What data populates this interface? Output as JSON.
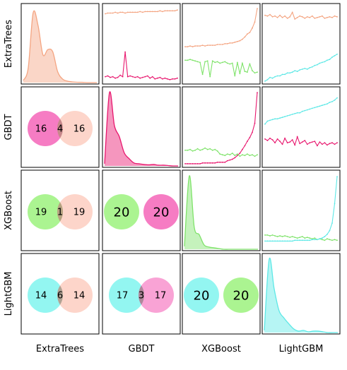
{
  "chart_data": {
    "type": "pairgrid",
    "models": [
      "ExtraTrees",
      "GBDT",
      "XGBoost",
      "LightGBM"
    ],
    "colors": {
      "ExtraTrees": "#f4a582",
      "GBDT": "#e8176e",
      "XGBoost": "#7fe36a",
      "LightGBM": "#5de8e6"
    },
    "venn_colors": {
      "ExtraTrees": "#fbb9a6",
      "GBDT": "#f565b9",
      "XGBoost": "#9cf27e",
      "LightGBM": "#80f4ee"
    },
    "density": {
      "ExtraTrees": [
        0.03,
        0.2,
        0.95,
        0.78,
        0.38,
        0.45,
        0.42,
        0.15,
        0.05,
        0.02,
        0.01,
        0.005,
        0.004,
        0.0,
        0.0,
        0.0
      ],
      "GBDT": [
        0.03,
        1.0,
        0.55,
        0.4,
        0.18,
        0.1,
        0.04,
        0.03,
        0.02,
        0.015,
        0.02,
        0.01,
        0.01,
        0.005,
        0.0,
        0.0
      ],
      "XGBoost": [
        0.04,
        1.0,
        0.3,
        0.2,
        0.06,
        0.03,
        0.02,
        0.01,
        0.0,
        0.0,
        0.0,
        0.0,
        0.0,
        0.0,
        0.0,
        0.0
      ],
      "LightGBM": [
        0.03,
        1.0,
        0.6,
        0.3,
        0.2,
        0.12,
        0.05,
        0.02,
        0.03,
        0.01,
        0.02,
        0.02,
        0.01,
        0.0,
        0.0,
        0.0
      ]
    },
    "pair_lines": [
      {
        "row": "ExtraTrees",
        "col": "GBDT",
        "series": [
          {
            "model": "ExtraTrees",
            "values": [
              0.91,
              0.92,
              0.92,
              0.92,
              0.93,
              0.92,
              0.93,
              0.93,
              0.92,
              0.93,
              0.93,
              0.93,
              0.93,
              0.93,
              0.94,
              0.93,
              0.94,
              0.94,
              0.94,
              0.94,
              0.94,
              0.94,
              0.95,
              0.94,
              0.95,
              0.95,
              0.95,
              0.95,
              0.95,
              0.96
            ]
          },
          {
            "model": "GBDT",
            "values": [
              0.07,
              0.08,
              0.06,
              0.07,
              0.05,
              0.06,
              0.09,
              0.07,
              0.4,
              0.07,
              0.08,
              0.07,
              0.06,
              0.07,
              0.05,
              0.06,
              0.07,
              0.08,
              0.05,
              0.07,
              0.04,
              0.05,
              0.06,
              0.04,
              0.05,
              0.04,
              0.03,
              0.04,
              0.04,
              0.05
            ]
          }
        ]
      },
      {
        "row": "ExtraTrees",
        "col": "XGBoost",
        "series": [
          {
            "model": "ExtraTrees",
            "values": [
              0.47,
              0.47,
              0.48,
              0.47,
              0.48,
              0.48,
              0.48,
              0.49,
              0.48,
              0.49,
              0.49,
              0.49,
              0.49,
              0.5,
              0.5,
              0.5,
              0.51,
              0.51,
              0.52,
              0.52,
              0.53,
              0.54,
              0.55,
              0.57,
              0.6,
              0.64,
              0.66,
              0.72,
              0.8,
              0.98
            ]
          },
          {
            "model": "XGBoost",
            "values": [
              0.29,
              0.29,
              0.3,
              0.29,
              0.28,
              0.27,
              0.26,
              0.1,
              0.27,
              0.28,
              0.07,
              0.28,
              0.26,
              0.27,
              0.25,
              0.26,
              0.27,
              0.25,
              0.24,
              0.25,
              0.08,
              0.26,
              0.11,
              0.25,
              0.14,
              0.13,
              0.24,
              0.15,
              0.12,
              0.13
            ]
          }
        ]
      },
      {
        "row": "ExtraTrees",
        "col": "LightGBM",
        "series": [
          {
            "model": "ExtraTrees",
            "values": [
              0.89,
              0.88,
              0.9,
              0.87,
              0.88,
              0.86,
              0.89,
              0.86,
              0.88,
              0.85,
              0.87,
              0.93,
              0.84,
              0.86,
              0.88,
              0.87,
              0.85,
              0.87,
              0.86,
              0.88,
              0.85,
              0.86,
              0.87,
              0.88,
              0.85,
              0.86,
              0.87,
              0.86,
              0.88,
              0.87
            ]
          },
          {
            "model": "LightGBM",
            "values": [
              0.01,
              0.03,
              0.06,
              0.05,
              0.07,
              0.08,
              0.08,
              0.1,
              0.1,
              0.12,
              0.12,
              0.13,
              0.15,
              0.14,
              0.16,
              0.17,
              0.18,
              0.17,
              0.19,
              0.2,
              0.22,
              0.23,
              0.25,
              0.26,
              0.27,
              0.29,
              0.3,
              0.33,
              0.35,
              0.37
            ]
          }
        ]
      },
      {
        "row": "GBDT",
        "col": "XGBoost",
        "series": [
          {
            "model": "GBDT",
            "values": [
              0.02,
              0.02,
              0.02,
              0.02,
              0.02,
              0.02,
              0.02,
              0.03,
              0.03,
              0.03,
              0.03,
              0.03,
              0.03,
              0.04,
              0.04,
              0.04,
              0.04,
              0.06,
              0.07,
              0.08,
              0.1,
              0.13,
              0.16,
              0.21,
              0.26,
              0.32,
              0.37,
              0.44,
              0.56,
              0.97
            ]
          },
          {
            "model": "XGBoost",
            "values": [
              0.2,
              0.2,
              0.21,
              0.19,
              0.2,
              0.22,
              0.2,
              0.21,
              0.23,
              0.21,
              0.22,
              0.2,
              0.21,
              0.19,
              0.15,
              0.14,
              0.13,
              0.15,
              0.14,
              0.16,
              0.13,
              0.15,
              0.12,
              0.14,
              0.13,
              0.15,
              0.13,
              0.14,
              0.12,
              0.14
            ]
          }
        ]
      },
      {
        "row": "GBDT",
        "col": "LightGBM",
        "series": [
          {
            "model": "LightGBM",
            "values": [
              0.55,
              0.59,
              0.6,
              0.61,
              0.62,
              0.62,
              0.63,
              0.64,
              0.65,
              0.66,
              0.67,
              0.68,
              0.69,
              0.7,
              0.7,
              0.72,
              0.73,
              0.74,
              0.75,
              0.76,
              0.77,
              0.78,
              0.79,
              0.8,
              0.81,
              0.82,
              0.84,
              0.85,
              0.87,
              0.9
            ]
          },
          {
            "model": "GBDT",
            "values": [
              0.35,
              0.33,
              0.36,
              0.34,
              0.3,
              0.35,
              0.32,
              0.28,
              0.36,
              0.3,
              0.31,
              0.34,
              0.27,
              0.38,
              0.29,
              0.31,
              0.33,
              0.28,
              0.3,
              0.31,
              0.32,
              0.26,
              0.31,
              0.28,
              0.3,
              0.27,
              0.29,
              0.3,
              0.28,
              0.3
            ]
          }
        ]
      },
      {
        "row": "XGBoost",
        "col": "LightGBM",
        "series": [
          {
            "model": "XGBoost",
            "values": [
              0.18,
              0.18,
              0.17,
              0.18,
              0.17,
              0.16,
              0.17,
              0.16,
              0.17,
              0.16,
              0.15,
              0.16,
              0.15,
              0.14,
              0.15,
              0.16,
              0.14,
              0.15,
              0.14,
              0.13,
              0.14,
              0.12,
              0.13,
              0.12,
              0.11,
              0.13,
              0.12,
              0.11,
              0.12,
              0.11
            ]
          },
          {
            "model": "LightGBM",
            "values": [
              0.1,
              0.1,
              0.1,
              0.1,
              0.1,
              0.1,
              0.1,
              0.1,
              0.1,
              0.1,
              0.1,
              0.1,
              0.11,
              0.11,
              0.11,
              0.11,
              0.11,
              0.11,
              0.11,
              0.12,
              0.12,
              0.12,
              0.13,
              0.14,
              0.16,
              0.19,
              0.24,
              0.34,
              0.6,
              0.96
            ]
          }
        ]
      }
    ],
    "venns": [
      {
        "row": "GBDT",
        "col": "ExtraTrees",
        "left": "GBDT",
        "right": "ExtraTrees",
        "left_only": "16",
        "both": "4",
        "right_only": "16"
      },
      {
        "row": "XGBoost",
        "col": "ExtraTrees",
        "left": "XGBoost",
        "right": "ExtraTrees",
        "left_only": "19",
        "both": "1",
        "right_only": "19"
      },
      {
        "row": "XGBoost",
        "col": "GBDT",
        "left": "XGBoost",
        "right": "GBDT",
        "left_only": "20",
        "both": "",
        "right_only": "20"
      },
      {
        "row": "LightGBM",
        "col": "ExtraTrees",
        "left": "LightGBM",
        "right": "ExtraTrees",
        "left_only": "14",
        "both": "6",
        "right_only": "14"
      },
      {
        "row": "LightGBM",
        "col": "GBDT",
        "left": "LightGBM",
        "right": "GBDT",
        "left_only": "17",
        "both": "3",
        "right_only": "17"
      },
      {
        "row": "LightGBM",
        "col": "XGBoost",
        "left": "LightGBM",
        "right": "XGBoost",
        "left_only": "20",
        "both": "",
        "right_only": "20"
      }
    ]
  }
}
